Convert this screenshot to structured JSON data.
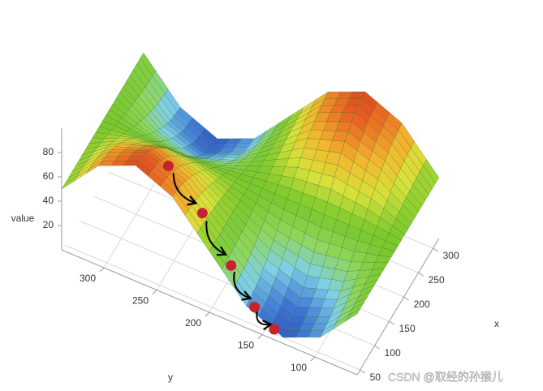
{
  "chart_data": {
    "type": "surface",
    "xlabel": "x",
    "ylabel": "y",
    "zlabel": "value",
    "x": [
      40,
      75,
      110,
      145,
      180,
      215,
      250,
      285,
      320
    ],
    "y": [
      60,
      95,
      130,
      165,
      200,
      235,
      270,
      305,
      340
    ],
    "z": [
      [
        50,
        18,
        5,
        18,
        50,
        82,
        95,
        82,
        50
      ],
      [
        50,
        21,
        8,
        21,
        50,
        79,
        92,
        79,
        50
      ],
      [
        50,
        28,
        18,
        28,
        50,
        72,
        82,
        72,
        50
      ],
      [
        50,
        38,
        33,
        38,
        50,
        62,
        67,
        62,
        50
      ],
      [
        50,
        50,
        50,
        50,
        50,
        50,
        50,
        50,
        50
      ],
      [
        50,
        62,
        67,
        62,
        50,
        38,
        33,
        38,
        50
      ],
      [
        50,
        72,
        82,
        72,
        50,
        28,
        18,
        28,
        50
      ],
      [
        50,
        79,
        92,
        79,
        50,
        21,
        8,
        21,
        50
      ],
      [
        50,
        82,
        95,
        82,
        50,
        18,
        5,
        18,
        50
      ]
    ],
    "xlim": [
      40,
      320
    ],
    "ylim": [
      60,
      340
    ],
    "zlim": [
      0,
      100
    ],
    "xticks": [
      50,
      100,
      150,
      200,
      250,
      300
    ],
    "yticks": [
      100,
      150,
      200,
      250,
      300
    ],
    "zticks": [
      20,
      40,
      60,
      80
    ],
    "grid": true,
    "colorscale": [
      "#2b3fae",
      "#3f78d6",
      "#7fd0e6",
      "#8fd65a",
      "#78c82c",
      "#d8e23a",
      "#f2b72e",
      "#ea6a22",
      "#d8281e"
    ],
    "points": {
      "color": "#c8232c",
      "x": [
        80,
        70,
        60,
        50,
        45
      ],
      "y": [
        250,
        215,
        185,
        160,
        140
      ],
      "z": [
        86,
        64,
        36,
        15,
        6
      ]
    }
  },
  "watermark": "CSDN @取经的孙猴儿"
}
